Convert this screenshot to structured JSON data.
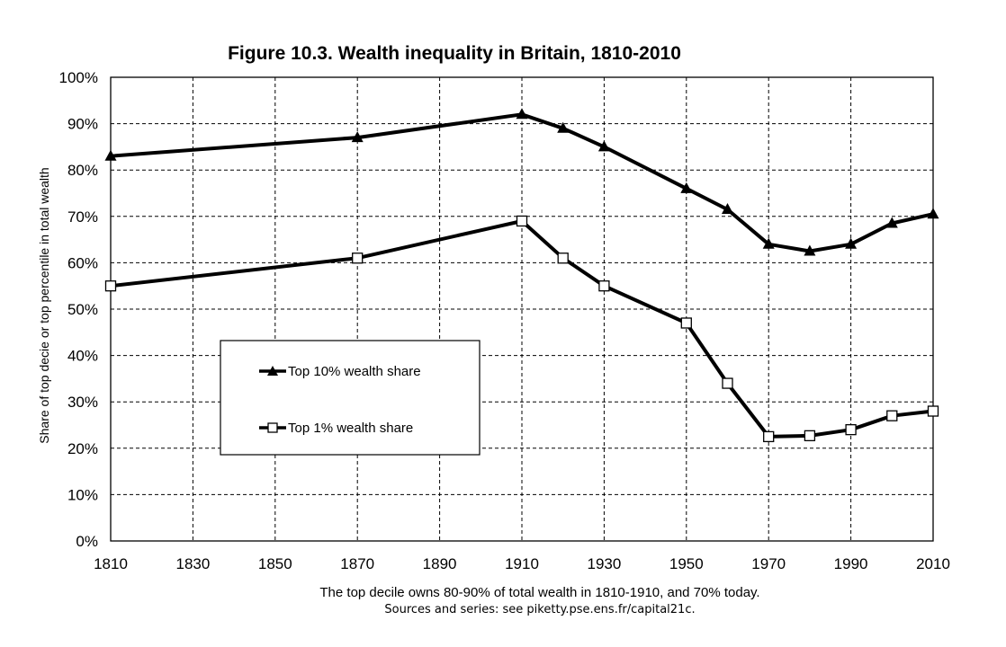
{
  "chart_data": {
    "type": "line",
    "title": "Figure 10.3. Wealth inequality in Britain, 1810-2010",
    "ylabel": "Share of top decie or top percentile in total wealth",
    "xlabel": "The top decile owns 80-90% of total wealth in 1810-1910, and 70% today.",
    "source_note": "Sources and series: see piketty.pse.ens.fr/capital21c.",
    "xlim": [
      1810,
      2010
    ],
    "ylim": [
      0,
      1
    ],
    "x_ticks": [
      "1810",
      "1830",
      "1850",
      "1870",
      "1890",
      "1910",
      "1930",
      "1950",
      "1970",
      "1990",
      "2010"
    ],
    "y_ticks": [
      "0%",
      "10%",
      "20%",
      "30%",
      "40%",
      "50%",
      "60%",
      "70%",
      "80%",
      "90%",
      "100%"
    ],
    "grid": true,
    "legend_position": "center-left",
    "series": [
      {
        "name": "Top 10% wealth share",
        "marker": "filled-triangle",
        "color": "#000000",
        "x": [
          1810,
          1870,
          1910,
          1920,
          1930,
          1950,
          1960,
          1970,
          1980,
          1990,
          2000,
          2010
        ],
        "values": [
          0.83,
          0.87,
          0.92,
          0.89,
          0.85,
          0.76,
          0.715,
          0.64,
          0.625,
          0.64,
          0.685,
          0.705
        ]
      },
      {
        "name": "Top 1% wealth share",
        "marker": "open-square",
        "color": "#000000",
        "x": [
          1810,
          1870,
          1910,
          1920,
          1930,
          1950,
          1960,
          1970,
          1980,
          1990,
          2000,
          2010
        ],
        "values": [
          0.55,
          0.61,
          0.69,
          0.61,
          0.55,
          0.47,
          0.34,
          0.225,
          0.227,
          0.24,
          0.27,
          0.28
        ]
      }
    ]
  }
}
